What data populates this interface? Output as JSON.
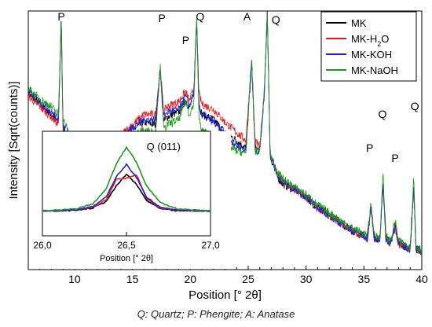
{
  "caption": "Q: Quartz; P: Phengite; A: Anatase",
  "chart_data": [
    {
      "type": "line",
      "xlabel": "Position [° 2θ]",
      "ylabel": "Intensity [Sqrt(counts)]",
      "xlim": [
        6,
        40
      ],
      "ylim": [
        0,
        100
      ],
      "xticks": [
        10,
        15,
        20,
        25,
        30,
        35,
        40
      ],
      "xtick_labels": [
        "10",
        "15",
        "20",
        "25",
        "30",
        "35",
        "40"
      ],
      "legend_position": "top-right",
      "series": [
        {
          "name": "MK",
          "label_base": "MK",
          "label_sub": "",
          "color": "#000000",
          "x": [
            6,
            7,
            8,
            8.6,
            8.85,
            9,
            9.5,
            10,
            11,
            12,
            13,
            14,
            15,
            16,
            17,
            17.4,
            17.7,
            18,
            19,
            19.6,
            19.9,
            20.3,
            20.55,
            20.75,
            21,
            22,
            23,
            24,
            24.8,
            25.3,
            25.6,
            26,
            26.4,
            26.65,
            26.9,
            27.5,
            28,
            29,
            30,
            31,
            32,
            33,
            34,
            35,
            35.3,
            35.6,
            35.9,
            36,
            36.4,
            36.65,
            36.9,
            37.3,
            37.7,
            38,
            38.5,
            39,
            39.3,
            39.5,
            40
          ],
          "y": [
            68,
            64,
            60,
            57,
            97,
            55,
            50,
            45,
            37,
            40,
            46,
            50,
            54,
            57,
            56,
            78,
            57,
            59,
            61,
            66,
            62,
            68,
            96,
            64,
            60,
            58,
            53,
            50,
            47,
            80,
            47,
            46,
            68,
            100,
            44,
            36,
            33,
            31,
            28,
            24,
            21,
            18,
            15,
            13,
            12,
            24,
            12,
            12,
            12,
            34,
            12,
            10,
            17,
            10,
            9,
            8,
            32,
            8,
            7
          ]
        },
        {
          "name": "MK-H2O",
          "label_base": "MK-H",
          "label_sub": "2",
          "label_tail": "O",
          "color": "#e8191a",
          "x": [
            6,
            7,
            8,
            8.6,
            8.85,
            9,
            9.5,
            10,
            11,
            12,
            13,
            14,
            15,
            16,
            17,
            17.4,
            17.7,
            18,
            19,
            19.6,
            19.9,
            20.3,
            20.55,
            20.75,
            21,
            22,
            23,
            24,
            24.8,
            25.3,
            25.6,
            26,
            26.4,
            26.65,
            26.9,
            27.5,
            28,
            29,
            30,
            31,
            32,
            33,
            34,
            35,
            35.3,
            35.6,
            35.9,
            36,
            36.4,
            36.65,
            36.9,
            37.3,
            37.7,
            38,
            38.5,
            39,
            39.3,
            39.5,
            40
          ],
          "y": [
            67,
            63,
            59,
            56,
            96,
            54,
            49,
            44,
            37,
            41,
            47,
            52,
            56,
            60,
            60,
            78,
            61,
            63,
            65,
            69,
            65,
            70,
            96,
            68,
            64,
            62,
            57,
            53,
            50,
            81,
            50,
            47,
            69,
            100,
            45,
            37,
            34,
            31,
            28,
            24,
            21,
            18,
            15,
            13,
            12,
            24,
            12,
            12,
            12,
            34,
            12,
            10,
            17,
            10,
            9,
            8,
            32,
            8,
            7
          ]
        },
        {
          "name": "MK-KOH",
          "label_base": "MK-KOH",
          "label_sub": "",
          "color": "#1f1fe0",
          "x": [
            6,
            7,
            8,
            8.6,
            8.85,
            9,
            9.5,
            10,
            11,
            12,
            13,
            14,
            15,
            16,
            17,
            17.4,
            17.7,
            18,
            19,
            19.6,
            19.9,
            20.3,
            20.55,
            20.75,
            21,
            22,
            23,
            24,
            24.8,
            25.3,
            25.6,
            26,
            26.4,
            26.65,
            26.9,
            27.5,
            28,
            29,
            30,
            31,
            32,
            33,
            34,
            35,
            35.3,
            35.6,
            35.9,
            36,
            36.4,
            36.65,
            36.9,
            37.3,
            37.7,
            38,
            38.5,
            39,
            39.3,
            39.5,
            40
          ],
          "y": [
            69,
            65,
            61,
            58,
            97,
            56,
            51,
            46,
            38,
            41,
            46,
            51,
            55,
            58,
            58,
            78,
            59,
            61,
            62,
            67,
            63,
            68,
            96,
            64,
            60,
            57,
            52,
            48,
            46,
            80,
            46,
            46,
            68,
            100,
            44,
            37,
            34,
            31,
            28,
            24,
            21,
            18,
            15,
            13,
            12,
            24,
            12,
            12,
            12,
            34,
            12,
            10,
            17,
            10,
            9,
            8,
            32,
            8,
            7
          ]
        },
        {
          "name": "MK-NaOH",
          "label_base": "MK-NaOH",
          "label_sub": "",
          "color": "#1a9a1a",
          "x": [
            6,
            7,
            8,
            8.6,
            8.85,
            9,
            9.5,
            10,
            11,
            12,
            13,
            14,
            15,
            16,
            17,
            17.4,
            17.7,
            18,
            19,
            19.6,
            19.9,
            20.3,
            20.55,
            20.75,
            21,
            22,
            23,
            24,
            24.8,
            25.3,
            25.6,
            26,
            26.4,
            26.65,
            26.9,
            27.5,
            28,
            29,
            30,
            31,
            32,
            33,
            34,
            35,
            35.3,
            35.6,
            35.9,
            36,
            36.4,
            36.65,
            36.9,
            37.3,
            37.7,
            38,
            38.5,
            39,
            39.3,
            39.5,
            40
          ],
          "y": [
            70,
            66,
            63,
            60,
            99,
            58,
            53,
            47,
            39,
            40,
            44,
            48,
            52,
            54,
            53,
            79,
            54,
            56,
            58,
            65,
            60,
            64,
            98,
            58,
            54,
            51,
            48,
            46,
            45,
            82,
            46,
            46,
            70,
            100,
            45,
            38,
            35,
            32,
            29,
            25,
            22,
            19,
            16,
            14,
            13,
            26,
            13,
            13,
            13,
            38,
            13,
            11,
            19,
            11,
            10,
            9,
            36,
            9,
            8
          ]
        }
      ],
      "annotations": [
        {
          "text": "P",
          "x": 8.85
        },
        {
          "text": "P",
          "x": 17.55
        },
        {
          "text": "P",
          "x": 19.6
        },
        {
          "text": "Q",
          "x": 20.85
        },
        {
          "text": "A",
          "x": 24.9
        },
        {
          "text": "Q",
          "x": 27.4
        },
        {
          "text": "Q",
          "x": 36.6
        },
        {
          "text": "P",
          "x": 35.5
        },
        {
          "text": "P",
          "x": 37.7
        },
        {
          "text": "Q",
          "x": 39.4
        }
      ]
    },
    {
      "type": "line",
      "title": "Q (011)",
      "xlabel": "Position [° 2θ]",
      "xlim": [
        26.0,
        27.0
      ],
      "ylim": [
        0,
        100
      ],
      "xticks": [
        26.0,
        26.5,
        27.0
      ],
      "xtick_labels": [
        "26,0",
        "26,5",
        "27,0"
      ],
      "series": [
        {
          "name": "MK",
          "color": "#000000",
          "x": [
            26.0,
            26.1,
            26.2,
            26.3,
            26.38,
            26.44,
            26.5,
            26.56,
            26.62,
            26.7,
            26.8,
            26.9,
            27.0
          ],
          "y": [
            2,
            2,
            3,
            6,
            16,
            38,
            55,
            40,
            17,
            5,
            2,
            2,
            2
          ]
        },
        {
          "name": "MK-H2O",
          "color": "#e8191a",
          "x": [
            26.0,
            26.1,
            26.2,
            26.3,
            26.38,
            26.44,
            26.5,
            26.56,
            26.62,
            26.7,
            26.8,
            26.9,
            27.0
          ],
          "y": [
            2,
            2,
            4,
            7,
            18,
            48,
            49,
            54,
            20,
            6,
            3,
            2,
            2
          ]
        },
        {
          "name": "MK-KOH",
          "color": "#1f1fe0",
          "x": [
            26.0,
            26.1,
            26.2,
            26.3,
            26.38,
            26.44,
            26.5,
            26.56,
            26.62,
            26.7,
            26.8,
            26.9,
            27.0
          ],
          "y": [
            2,
            2,
            4,
            8,
            22,
            52,
            69,
            50,
            22,
            7,
            3,
            2,
            2
          ]
        },
        {
          "name": "MK-NaOH",
          "color": "#1a9a1a",
          "x": [
            26.0,
            26.1,
            26.2,
            26.3,
            26.38,
            26.44,
            26.5,
            26.56,
            26.62,
            26.7,
            26.8,
            26.9,
            27.0
          ],
          "y": [
            2,
            3,
            5,
            12,
            34,
            70,
            94,
            72,
            38,
            14,
            5,
            3,
            2
          ]
        }
      ]
    }
  ]
}
